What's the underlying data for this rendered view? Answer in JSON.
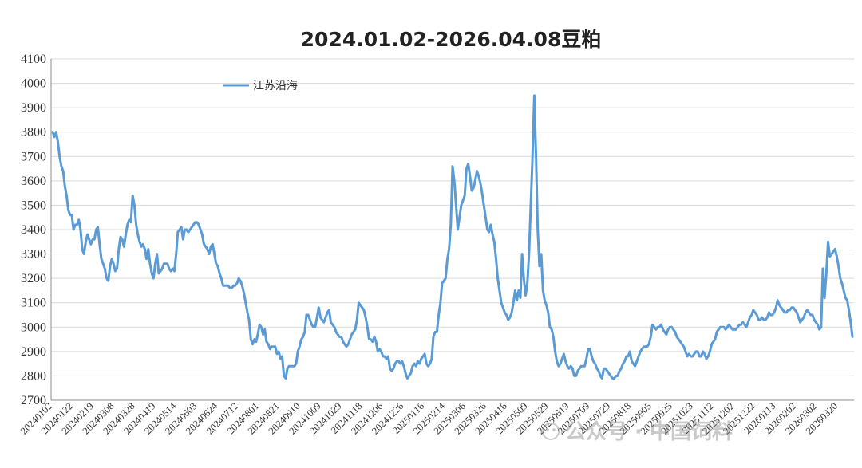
{
  "chart_data": {
    "type": "line",
    "title": "2024.01.02-2026.04.08豆粕",
    "xlabel": "",
    "ylabel": "",
    "ylim": [
      2700,
      4100
    ],
    "yticks": [
      2700,
      2800,
      2900,
      3000,
      3100,
      3200,
      3300,
      3400,
      3500,
      3600,
      3700,
      3800,
      3900,
      4000,
      4100
    ],
    "grid": true,
    "legend": "top-left",
    "xtick_labels": [
      "20240102",
      "20240122",
      "20240219",
      "20240308",
      "20240328",
      "20240419",
      "20240514",
      "20240603",
      "20240624",
      "20240712",
      "20240801",
      "20240821",
      "20240910",
      "20241009",
      "20241029",
      "20241118",
      "20241206",
      "20241226",
      "20250116",
      "20250214",
      "20250306",
      "20250326",
      "20250416",
      "20250509",
      "20250529",
      "20250619",
      "20250709",
      "20250729",
      "20250818",
      "20250905",
      "20250925",
      "20251023",
      "20251112",
      "20251202",
      "20251222",
      "20260113",
      "20260202",
      "20260302",
      "20260320"
    ],
    "series": [
      {
        "name": "江苏沿海",
        "color": "#5b9bd5",
        "values": [
          3800,
          3780,
          3800,
          3760,
          3700,
          3660,
          3640,
          3580,
          3540,
          3480,
          3460,
          3460,
          3400,
          3420,
          3420,
          3440,
          3400,
          3320,
          3300,
          3350,
          3380,
          3360,
          3340,
          3360,
          3360,
          3400,
          3410,
          3340,
          3280,
          3260,
          3240,
          3200,
          3190,
          3250,
          3280,
          3260,
          3230,
          3240,
          3320,
          3370,
          3360,
          3330,
          3380,
          3420,
          3440,
          3430,
          3540,
          3500,
          3420,
          3380,
          3350,
          3330,
          3340,
          3320,
          3280,
          3320,
          3260,
          3220,
          3200,
          3260,
          3300,
          3220,
          3230,
          3240,
          3260,
          3260,
          3260,
          3240,
          3230,
          3240,
          3230,
          3300,
          3390,
          3400,
          3410,
          3360,
          3400,
          3400,
          3390,
          3400,
          3410,
          3420,
          3430,
          3430,
          3420,
          3400,
          3380,
          3340,
          3330,
          3320,
          3300,
          3330,
          3340,
          3300,
          3260,
          3250,
          3220,
          3200,
          3170,
          3170,
          3170,
          3170,
          3160,
          3160,
          3170,
          3170,
          3180,
          3200,
          3190,
          3170,
          3140,
          3100,
          3060,
          3030,
          2950,
          2930,
          2950,
          2940,
          2970,
          3010,
          3000,
          2970,
          2990,
          2940,
          2930,
          2910,
          2920,
          2920,
          2920,
          2890,
          2900,
          2870,
          2880,
          2800,
          2790,
          2830,
          2840,
          2840,
          2840,
          2840,
          2850,
          2900,
          2920,
          2950,
          2960,
          2980,
          3050,
          3050,
          3030,
          3010,
          3000,
          3000,
          3040,
          3080,
          3040,
          3030,
          3020,
          3040,
          3060,
          3070,
          3020,
          3010,
          3000,
          2980,
          2970,
          2960,
          2960,
          2940,
          2930,
          2920,
          2930,
          2950,
          2970,
          2980,
          2990,
          3030,
          3100,
          3090,
          3080,
          3070,
          3040,
          3000,
          2950,
          2950,
          2940,
          2960,
          2940,
          2900,
          2910,
          2900,
          2880,
          2880,
          2870,
          2880,
          2830,
          2820,
          2830,
          2850,
          2860,
          2860,
          2850,
          2860,
          2840,
          2810,
          2790,
          2800,
          2810,
          2840,
          2850,
          2840,
          2860,
          2850,
          2870,
          2880,
          2890,
          2850,
          2840,
          2850,
          2870,
          2960,
          2980,
          2980,
          3050,
          3100,
          3180,
          3190,
          3200,
          3280,
          3320,
          3420,
          3660,
          3600,
          3500,
          3400,
          3450,
          3500,
          3520,
          3540,
          3650,
          3670,
          3620,
          3560,
          3570,
          3600,
          3640,
          3620,
          3590,
          3550,
          3500,
          3450,
          3400,
          3390,
          3420,
          3380,
          3350,
          3280,
          3200,
          3150,
          3100,
          3080,
          3060,
          3050,
          3030,
          3040,
          3060,
          3100,
          3150,
          3110,
          3150,
          3120,
          3300,
          3200,
          3130,
          3180,
          3300,
          3500,
          3700,
          3950,
          3700,
          3400,
          3250,
          3300,
          3150,
          3110,
          3090,
          3060,
          3000,
          2990,
          2960,
          2900,
          2860,
          2840,
          2850,
          2870,
          2890,
          2860,
          2840,
          2830,
          2840,
          2830,
          2800,
          2800,
          2820,
          2830,
          2840,
          2840,
          2840,
          2870,
          2910,
          2910,
          2880,
          2860,
          2850,
          2830,
          2820,
          2800,
          2790,
          2830,
          2830,
          2820,
          2810,
          2800,
          2790,
          2790,
          2800,
          2800,
          2820,
          2830,
          2850,
          2860,
          2880,
          2880,
          2900,
          2860,
          2850,
          2840,
          2860,
          2880,
          2900,
          2910,
          2920,
          2920,
          2920,
          2930,
          2960,
          3010,
          3000,
          2990,
          3000,
          3000,
          3010,
          2990,
          2980,
          2970,
          2990,
          3000,
          3000,
          2990,
          2980,
          2960,
          2950,
          2940,
          2930,
          2920,
          2900,
          2880,
          2890,
          2880,
          2880,
          2890,
          2900,
          2900,
          2880,
          2880,
          2900,
          2890,
          2870,
          2880,
          2900,
          2930,
          2940,
          2950,
          2980,
          2990,
          3000,
          3000,
          3000,
          2990,
          3000,
          3010,
          3000,
          2990,
          2990,
          2990,
          3000,
          3010,
          3010,
          3020,
          3010,
          3000,
          3020,
          3040,
          3050,
          3070,
          3060,
          3050,
          3030,
          3030,
          3040,
          3030,
          3030,
          3040,
          3060,
          3050,
          3050,
          3060,
          3080,
          3110,
          3090,
          3080,
          3070,
          3060,
          3060,
          3070,
          3070,
          3080,
          3080,
          3070,
          3060,
          3040,
          3020,
          3030,
          3040,
          3060,
          3070,
          3060,
          3050,
          3050,
          3030,
          3020,
          3010,
          2990,
          3000,
          3240,
          3120,
          3220,
          3350,
          3290,
          3300,
          3310,
          3320,
          3290,
          3250,
          3200,
          3180,
          3150,
          3120,
          3110,
          3070,
          3020,
          2960
        ]
      }
    ]
  },
  "watermark": "公众号 · 中国饲料"
}
